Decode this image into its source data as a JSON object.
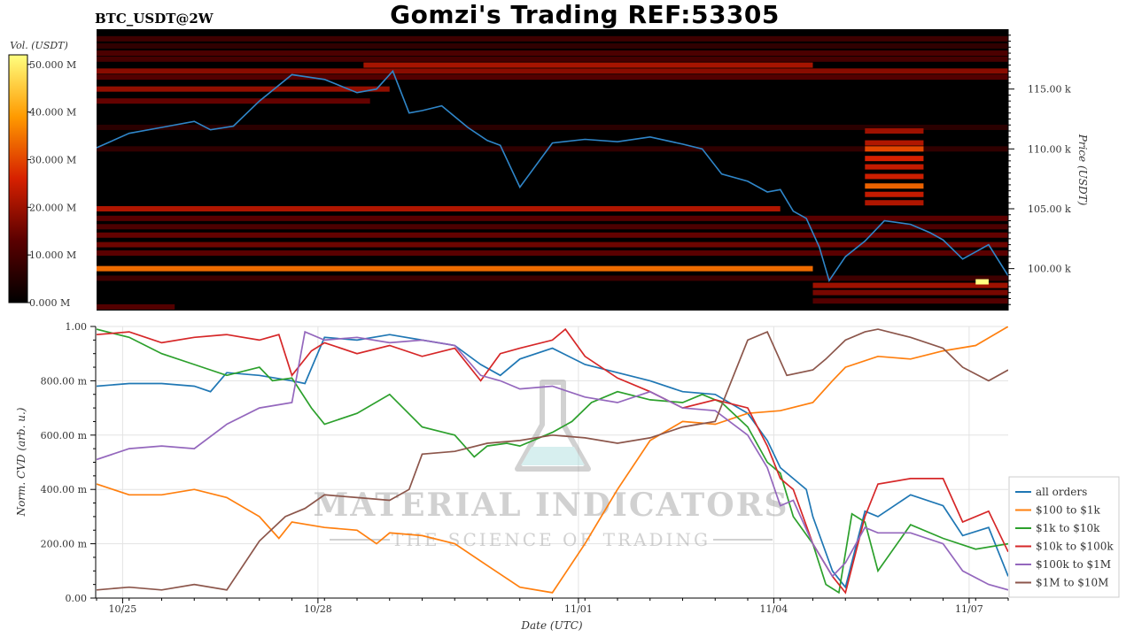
{
  "header": {
    "title": "Gomzi's Trading REF:53305",
    "symbol": "BTC_USDT@2W"
  },
  "watermark": {
    "line1": "MATERIAL INDICATORS",
    "line2": "THE SCIENCE OF TRADING"
  },
  "colors": {
    "price_line": "#2f86c9",
    "heatmap_bg": "#000000",
    "grid": "#dddddd"
  },
  "chart_data": [
    {
      "type": "heatmap",
      "title": "BTC_USDT@2W",
      "ylabel": "Price (USDT)",
      "ylim": [
        96500,
        120000
      ],
      "yticks": [
        {
          "value": 100000,
          "label": "100.00 k"
        },
        {
          "value": 105000,
          "label": "105.00 k"
        },
        {
          "value": 110000,
          "label": "110.00 k"
        },
        {
          "value": 115000,
          "label": "115.00 k"
        }
      ],
      "colorbar": {
        "label": "Vol. (USDT)",
        "range": [
          0,
          52000000
        ],
        "ticks": [
          {
            "value": 0,
            "label": "0.000 M"
          },
          {
            "value": 10000000,
            "label": "10.000 M"
          },
          {
            "value": 20000000,
            "label": "20.000 M"
          },
          {
            "value": 30000000,
            "label": "30.000 M"
          },
          {
            "value": 40000000,
            "label": "40.000 M"
          },
          {
            "value": 50000000,
            "label": "50.000 M"
          }
        ]
      },
      "xlim_days": [
        0,
        14
      ],
      "liquidity_bands": [
        {
          "price": 119200,
          "start": 0,
          "end": 14,
          "volume": 9000000
        },
        {
          "price": 118600,
          "start": 0,
          "end": 14,
          "volume": 7000000
        },
        {
          "price": 118000,
          "start": 0,
          "end": 14,
          "volume": 11000000
        },
        {
          "price": 117500,
          "start": 0,
          "end": 14,
          "volume": 10000000
        },
        {
          "price": 117000,
          "start": 4.1,
          "end": 11.0,
          "volume": 21000000
        },
        {
          "price": 116500,
          "start": 0,
          "end": 14,
          "volume": 18000000
        },
        {
          "price": 116000,
          "start": 0,
          "end": 14,
          "volume": 12000000
        },
        {
          "price": 115000,
          "start": 0,
          "end": 4.5,
          "volume": 19000000
        },
        {
          "price": 114000,
          "start": 0,
          "end": 4.2,
          "volume": 14000000
        },
        {
          "price": 111800,
          "start": 0,
          "end": 14,
          "volume": 6000000
        },
        {
          "price": 110000,
          "start": 0,
          "end": 14,
          "volume": 7000000
        },
        {
          "price": 105000,
          "start": 0,
          "end": 10.5,
          "volume": 22000000
        },
        {
          "price": 104200,
          "start": 0,
          "end": 14,
          "volume": 13000000
        },
        {
          "price": 103500,
          "start": 0,
          "end": 14,
          "volume": 11000000
        },
        {
          "price": 102800,
          "start": 0,
          "end": 14,
          "volume": 14000000
        },
        {
          "price": 102000,
          "start": 0,
          "end": 14,
          "volume": 15000000
        },
        {
          "price": 101300,
          "start": 0,
          "end": 14,
          "volume": 13000000
        },
        {
          "price": 100000,
          "start": 0,
          "end": 11.0,
          "volume": 34000000
        },
        {
          "price": 99200,
          "start": 0,
          "end": 14,
          "volume": 9000000
        },
        {
          "price": 98600,
          "start": 11.0,
          "end": 14,
          "volume": 20000000
        },
        {
          "price": 98000,
          "start": 11.0,
          "end": 14,
          "volume": 16000000
        },
        {
          "price": 97300,
          "start": 11.0,
          "end": 14,
          "volume": 12000000
        },
        {
          "price": 96800,
          "start": 0,
          "end": 1.2,
          "volume": 12000000
        },
        {
          "price": 111500,
          "start": 11.8,
          "end": 12.7,
          "volume": 20000000
        },
        {
          "price": 110500,
          "start": 11.8,
          "end": 12.7,
          "volume": 22000000
        },
        {
          "price": 110000,
          "start": 11.8,
          "end": 12.7,
          "volume": 30000000
        },
        {
          "price": 109200,
          "start": 11.8,
          "end": 12.7,
          "volume": 26000000
        },
        {
          "price": 108500,
          "start": 11.8,
          "end": 12.7,
          "volume": 24000000
        },
        {
          "price": 107700,
          "start": 11.8,
          "end": 12.7,
          "volume": 25000000
        },
        {
          "price": 106900,
          "start": 11.8,
          "end": 12.7,
          "volume": 33000000
        },
        {
          "price": 106200,
          "start": 11.8,
          "end": 12.7,
          "volume": 24000000
        },
        {
          "price": 105500,
          "start": 11.8,
          "end": 12.7,
          "volume": 22000000
        },
        {
          "price": 98900,
          "start": 13.5,
          "end": 13.7,
          "volume": 52000000
        }
      ],
      "price_series": {
        "name": "",
        "x": [
          0,
          0.5,
          1,
          1.5,
          1.75,
          2.1,
          2.5,
          3.0,
          3.5,
          4.0,
          4.3,
          4.55,
          4.8,
          5.0,
          5.3,
          5.7,
          6.0,
          6.2,
          6.5,
          7.0,
          7.5,
          8.0,
          8.5,
          9.0,
          9.3,
          9.6,
          10.0,
          10.3,
          10.5,
          10.7,
          10.9,
          11.1,
          11.25,
          11.5,
          11.8,
          12.1,
          12.5,
          12.8,
          13.0,
          13.3,
          13.7,
          14.0
        ],
        "y": [
          110100,
          111300,
          111800,
          112300,
          111600,
          111900,
          114000,
          116200,
          115800,
          114700,
          115000,
          116500,
          113000,
          113200,
          113600,
          111800,
          110700,
          110300,
          106800,
          110500,
          110800,
          110600,
          111000,
          110400,
          110000,
          107900,
          107300,
          106400,
          106600,
          104800,
          104200,
          101800,
          99000,
          101000,
          102300,
          104000,
          103700,
          103000,
          102400,
          100800,
          102000,
          99400
        ]
      }
    },
    {
      "type": "line",
      "xlabel": "Date (UTC)",
      "ylabel": "Norm. CVD (arb. u.)",
      "ylim": [
        0,
        1
      ],
      "xlim_days": [
        0,
        14
      ],
      "x_ticks": [
        {
          "value": 0.4,
          "label": "10/25"
        },
        {
          "value": 3.4,
          "label": "10/28"
        },
        {
          "value": 7.4,
          "label": "11/01"
        },
        {
          "value": 10.4,
          "label": "11/04"
        },
        {
          "value": 13.4,
          "label": "11/07"
        }
      ],
      "y_ticks": [
        {
          "value": 0.0,
          "label": "0.00"
        },
        {
          "value": 0.2,
          "label": "200.00 m"
        },
        {
          "value": 0.4,
          "label": "400.00 m"
        },
        {
          "value": 0.6,
          "label": "600.00 m"
        },
        {
          "value": 0.8,
          "label": "800.00 m"
        },
        {
          "value": 1.0,
          "label": "1.00"
        }
      ],
      "grid": true,
      "legend_position": "bottom-right",
      "series": [
        {
          "name": "all orders",
          "color": "#1f77b4",
          "x": [
            0,
            0.5,
            1.0,
            1.5,
            1.75,
            2.0,
            2.5,
            3.0,
            3.2,
            3.5,
            4.0,
            4.5,
            5.0,
            5.5,
            5.9,
            6.2,
            6.5,
            7.0,
            7.5,
            8.0,
            8.5,
            9.0,
            9.5,
            10.0,
            10.3,
            10.5,
            10.7,
            10.9,
            11.0,
            11.3,
            11.5,
            11.8,
            12.0,
            12.5,
            13.0,
            13.3,
            13.7,
            14.0
          ],
          "y": [
            0.78,
            0.79,
            0.79,
            0.78,
            0.76,
            0.83,
            0.82,
            0.8,
            0.79,
            0.96,
            0.95,
            0.97,
            0.95,
            0.93,
            0.86,
            0.82,
            0.88,
            0.92,
            0.86,
            0.83,
            0.8,
            0.76,
            0.75,
            0.68,
            0.58,
            0.48,
            0.44,
            0.4,
            0.3,
            0.1,
            0.04,
            0.32,
            0.3,
            0.38,
            0.34,
            0.23,
            0.26,
            0.08
          ]
        },
        {
          "name": "$100 to $1k",
          "color": "#ff7f0e",
          "x": [
            0,
            0.5,
            1.0,
            1.5,
            2.0,
            2.5,
            2.8,
            3.0,
            3.5,
            4.0,
            4.3,
            4.5,
            5.0,
            5.5,
            6.0,
            6.5,
            7.0,
            7.5,
            8.0,
            8.5,
            9.0,
            9.5,
            10.0,
            10.5,
            11.0,
            11.3,
            11.5,
            12.0,
            12.5,
            13.0,
            13.5,
            14.0
          ],
          "y": [
            0.42,
            0.38,
            0.38,
            0.4,
            0.37,
            0.3,
            0.22,
            0.28,
            0.26,
            0.25,
            0.2,
            0.24,
            0.23,
            0.2,
            0.12,
            0.04,
            0.02,
            0.2,
            0.4,
            0.58,
            0.65,
            0.64,
            0.68,
            0.69,
            0.72,
            0.8,
            0.85,
            0.89,
            0.88,
            0.91,
            0.93,
            1.0
          ]
        },
        {
          "name": "$1k to $10k",
          "color": "#2ca02c",
          "x": [
            0,
            0.5,
            1.0,
            1.5,
            2.0,
            2.5,
            2.7,
            3.0,
            3.3,
            3.5,
            4.0,
            4.5,
            5.0,
            5.5,
            5.8,
            6.0,
            6.3,
            6.5,
            7.0,
            7.3,
            7.6,
            8.0,
            8.5,
            9.0,
            9.3,
            9.6,
            10.0,
            10.3,
            10.5,
            10.7,
            11.0,
            11.2,
            11.4,
            11.6,
            11.8,
            12.0,
            12.5,
            13.0,
            13.5,
            14.0
          ],
          "y": [
            0.99,
            0.96,
            0.9,
            0.86,
            0.82,
            0.85,
            0.8,
            0.81,
            0.7,
            0.64,
            0.68,
            0.75,
            0.63,
            0.6,
            0.52,
            0.56,
            0.57,
            0.56,
            0.61,
            0.65,
            0.72,
            0.76,
            0.73,
            0.72,
            0.75,
            0.72,
            0.63,
            0.5,
            0.46,
            0.3,
            0.2,
            0.05,
            0.02,
            0.31,
            0.28,
            0.1,
            0.27,
            0.22,
            0.18,
            0.2
          ]
        },
        {
          "name": "$10k to $100k",
          "color": "#d62728",
          "x": [
            0,
            0.5,
            1.0,
            1.5,
            2.0,
            2.5,
            2.8,
            3.0,
            3.3,
            3.5,
            4.0,
            4.5,
            5.0,
            5.5,
            5.9,
            6.2,
            6.5,
            7.0,
            7.2,
            7.5,
            8.0,
            8.5,
            9.0,
            9.5,
            10.0,
            10.3,
            10.5,
            10.7,
            11.0,
            11.3,
            11.5,
            11.8,
            12.0,
            12.5,
            13.0,
            13.3,
            13.7,
            14.0
          ],
          "y": [
            0.97,
            0.98,
            0.94,
            0.96,
            0.97,
            0.95,
            0.97,
            0.82,
            0.91,
            0.94,
            0.9,
            0.93,
            0.89,
            0.92,
            0.8,
            0.9,
            0.92,
            0.95,
            0.99,
            0.89,
            0.81,
            0.76,
            0.7,
            0.73,
            0.7,
            0.56,
            0.44,
            0.4,
            0.2,
            0.08,
            0.02,
            0.3,
            0.42,
            0.44,
            0.44,
            0.28,
            0.32,
            0.17
          ]
        },
        {
          "name": "$100k to $1M",
          "color": "#9467bd",
          "x": [
            0,
            0.5,
            1.0,
            1.5,
            2.0,
            2.5,
            3.0,
            3.2,
            3.5,
            4.0,
            4.5,
            5.0,
            5.5,
            5.9,
            6.2,
            6.5,
            7.0,
            7.5,
            8.0,
            8.5,
            9.0,
            9.5,
            10.0,
            10.3,
            10.5,
            10.7,
            11.0,
            11.3,
            11.5,
            11.8,
            12.0,
            12.5,
            13.0,
            13.3,
            13.7,
            14.0
          ],
          "y": [
            0.51,
            0.55,
            0.56,
            0.55,
            0.64,
            0.7,
            0.72,
            0.98,
            0.95,
            0.96,
            0.94,
            0.95,
            0.93,
            0.82,
            0.8,
            0.77,
            0.78,
            0.74,
            0.72,
            0.76,
            0.7,
            0.69,
            0.6,
            0.48,
            0.34,
            0.36,
            0.2,
            0.08,
            0.13,
            0.26,
            0.24,
            0.24,
            0.2,
            0.1,
            0.05,
            0.03
          ]
        },
        {
          "name": "$1M to $10M",
          "color": "#8c564b",
          "x": [
            0,
            0.5,
            1.0,
            1.5,
            2.0,
            2.5,
            2.9,
            3.2,
            3.5,
            4.0,
            4.5,
            4.8,
            5.0,
            5.5,
            6.0,
            6.5,
            7.0,
            7.5,
            8.0,
            8.5,
            9.0,
            9.5,
            10.0,
            10.3,
            10.6,
            11.0,
            11.2,
            11.5,
            11.8,
            12.0,
            12.5,
            13.0,
            13.3,
            13.7,
            14.0
          ],
          "y": [
            0.03,
            0.04,
            0.03,
            0.05,
            0.03,
            0.21,
            0.3,
            0.33,
            0.38,
            0.37,
            0.36,
            0.4,
            0.53,
            0.54,
            0.57,
            0.58,
            0.6,
            0.59,
            0.57,
            0.59,
            0.63,
            0.65,
            0.95,
            0.98,
            0.82,
            0.84,
            0.88,
            0.95,
            0.98,
            0.99,
            0.96,
            0.92,
            0.85,
            0.8,
            0.84
          ]
        }
      ]
    }
  ]
}
